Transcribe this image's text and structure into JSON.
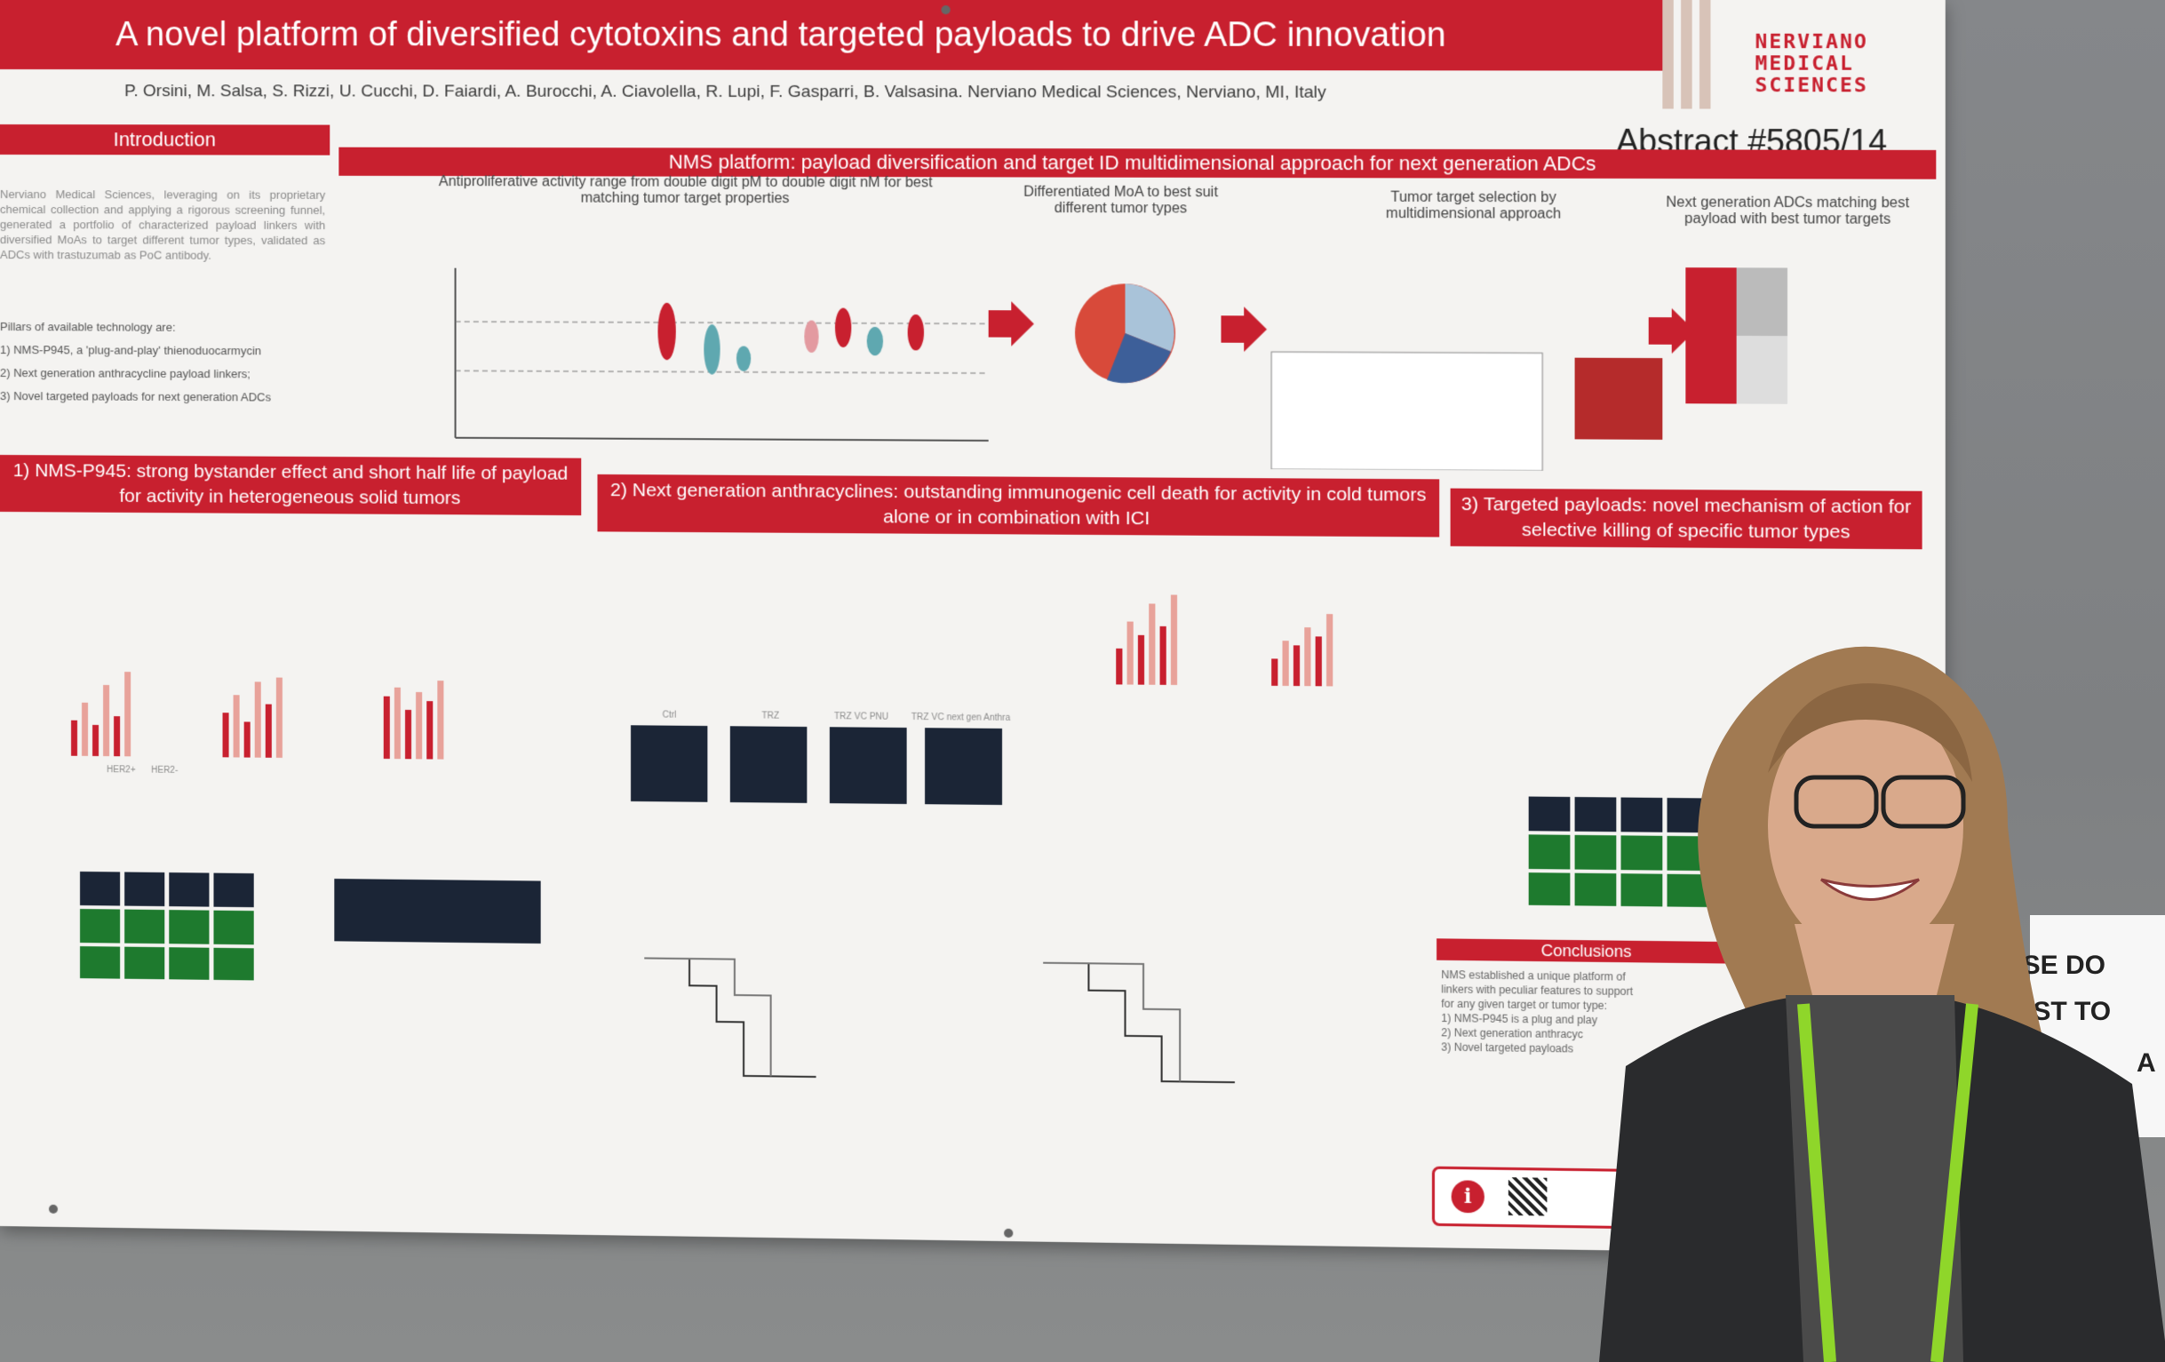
{
  "poster": {
    "title": "A novel platform of diversified cytotoxins and targeted payloads to drive ADC innovation",
    "logo_lines": [
      "NERVIANO",
      "MEDICAL",
      "SCIENCES"
    ],
    "authors": "P. Orsini, M. Salsa, S. Rizzi, U. Cucchi, D. Faiardi, A. Burocchi, A. Ciavolella, R. Lupi, F. Gasparri, B. Valsasina. Nerviano Medical Sciences, Nerviano, MI, Italy",
    "abstract_number": "Abstract #5805/14",
    "introduction": {
      "heading": "Introduction",
      "text": "Nerviano Medical Sciences, leveraging on its proprietary chemical collection and applying a rigorous screening funnel, generated a portfolio of characterized payload linkers with diversified MoAs to target different tumor types, validated as ADCs with trastuzumab as PoC antibody.",
      "pillars_heading": "Pillars of available technology are:",
      "pillars": [
        "1) NMS-P945, a 'plug-and-play' thienoduocarmycin",
        "2) Next generation anthracycline payload linkers;",
        "3) Novel targeted payloads for next generation ADCs"
      ]
    },
    "platform": {
      "heading": "NMS platform: payload diversification and target ID multidimensional approach for next generation ADCs",
      "sub1": "Antiproliferative activity range from double digit pM to double digit nM for best matching tumor target properties",
      "sub2": "Differentiated MoA to best suit different tumor types",
      "sub3": "Tumor target selection by multidimensional approach",
      "sub4": "Next generation ADCs matching best payload with best tumor targets"
    },
    "sections": {
      "s1": "1) NMS-P945: strong bystander effect and short half life of payload for activity in heterogeneous solid tumors",
      "s2": "2) Next generation anthracyclines: outstanding immunogenic cell death for activity in cold tumors alone or in combination with ICI",
      "s3": "3) Targeted payloads: novel mechanism of action for selective killing of specific tumor types",
      "conclusions": "Conclusions"
    },
    "conclusion_lines": [
      "NMS established a unique platform of",
      "linkers with peculiar features to support",
      "for any given target or tumor type:",
      "1) NMS-P945 is a plug and play",
      "2) Next generation anthracyc",
      "3) Novel targeted payloads"
    ],
    "micro_labels": [
      "Ctrl",
      "TRZ",
      "TRZ VC PNU",
      "TRZ VC next gen Anthra"
    ],
    "axis_groups": [
      "HER2+",
      "HER2-"
    ]
  },
  "sign": {
    "lines": [
      "ASE DO",
      "OST TO",
      "A"
    ]
  },
  "colors": {
    "brand_red": "#c8202f",
    "board_gray": "#7e8082",
    "poster_bg": "#f4f3f1",
    "lanyard": "#8fd62a"
  }
}
